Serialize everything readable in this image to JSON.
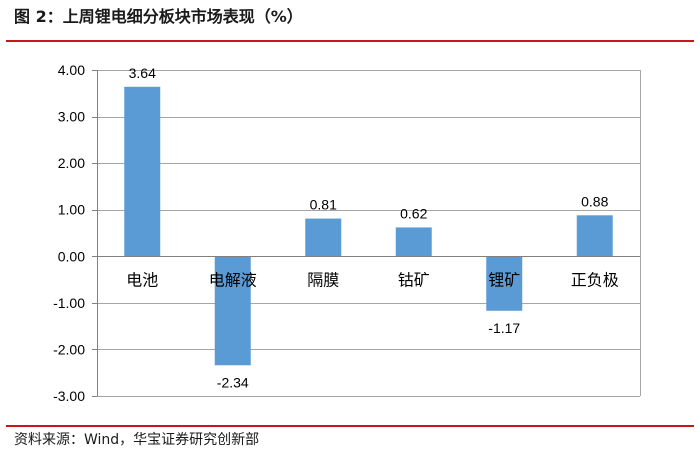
{
  "figure": {
    "title": "图 2：上周锂电细分板块市场表现（%）",
    "source": "资料来源：Wind，华宝证券研究创新部"
  },
  "colors": {
    "bar": "#5b9bd5",
    "grid": "#a6a6a6",
    "rule": "#c8161d"
  },
  "chart_data": {
    "type": "bar",
    "categories": [
      "电池",
      "电解液",
      "隔膜",
      "钴矿",
      "锂矿",
      "正负极"
    ],
    "values": [
      3.64,
      -2.34,
      0.81,
      0.62,
      -1.17,
      0.88
    ],
    "data_labels": [
      "3.64",
      "-2.34",
      "0.81",
      "0.62",
      "-1.17",
      "0.88"
    ],
    "yticks": [
      4,
      3,
      2,
      1,
      0,
      -1,
      -2,
      -3
    ],
    "ytick_labels": [
      "4.00",
      "3.00",
      "2.00",
      "1.00",
      "0.00",
      "-1.00",
      "-2.00",
      "-3.00"
    ],
    "ylim": [
      -3,
      4
    ],
    "grid": true,
    "legend": "none"
  }
}
